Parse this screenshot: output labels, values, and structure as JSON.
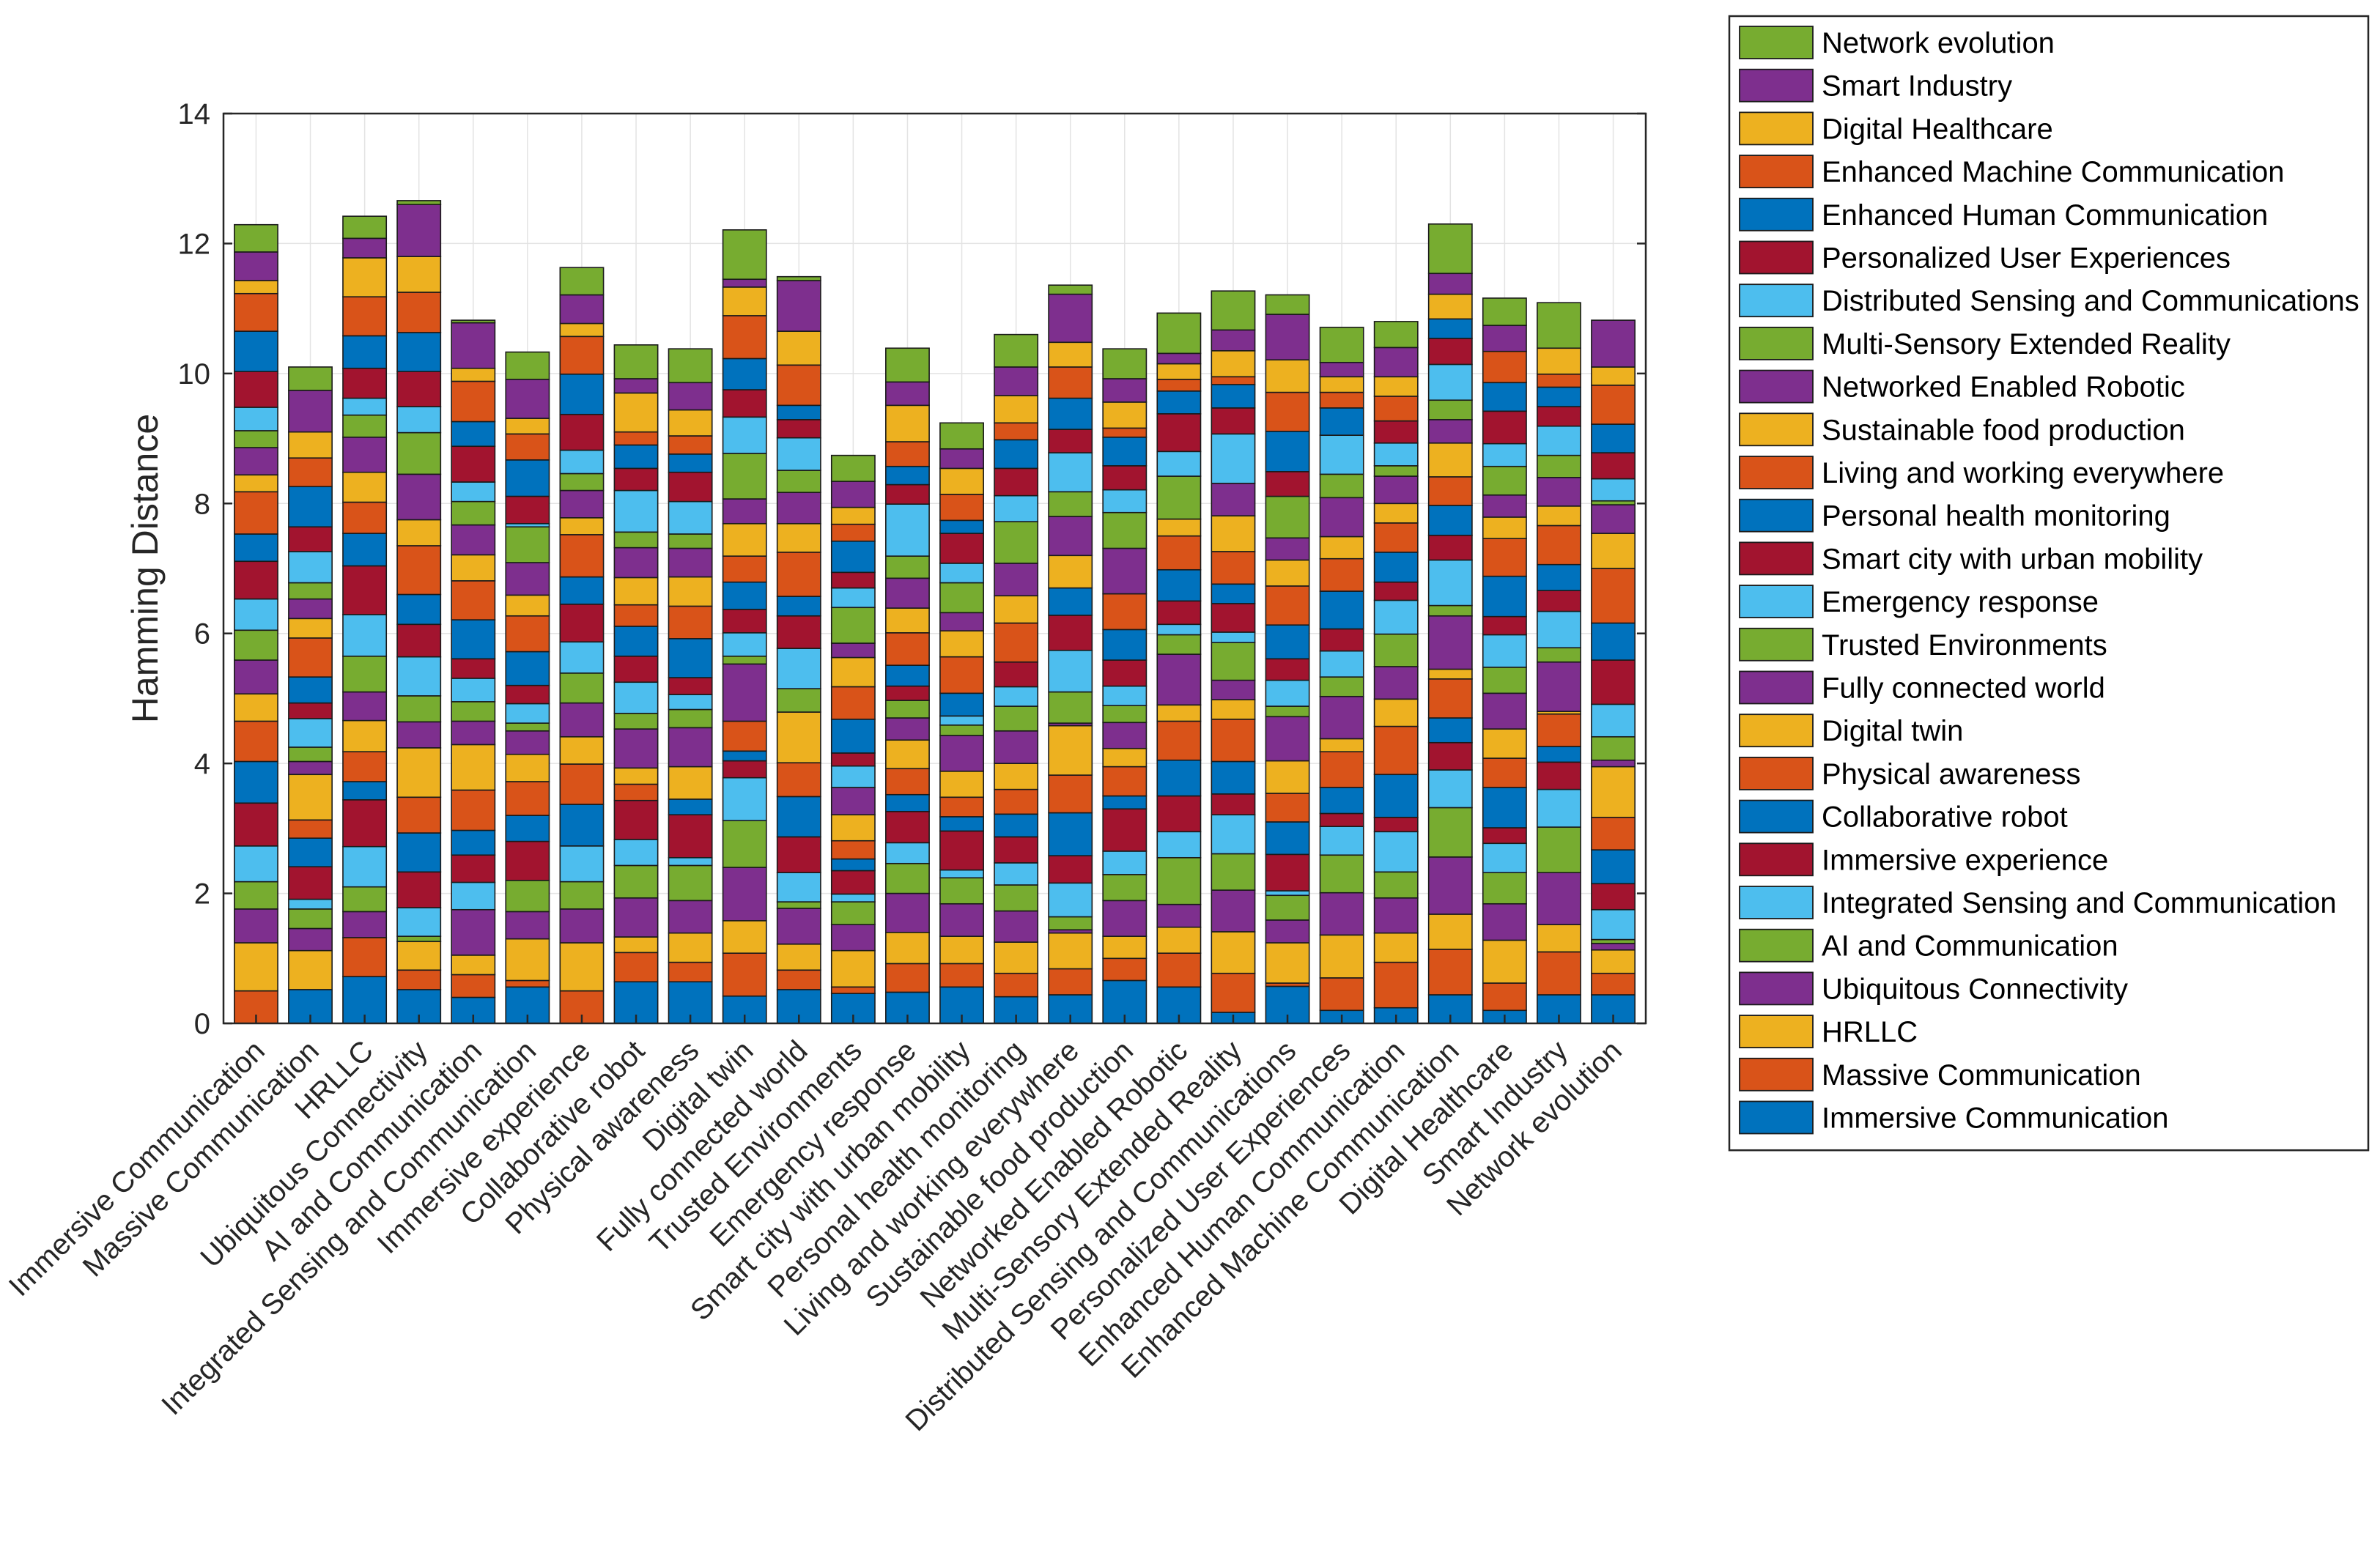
{
  "chart_data": {
    "type": "bar",
    "stacked": true,
    "title": "",
    "xlabel": "",
    "ylabel": "Hamming Distance",
    "ylim": [
      0,
      14
    ],
    "yticks": [
      "0",
      "2",
      "4",
      "6",
      "8",
      "10",
      "12",
      "14"
    ],
    "grid": true,
    "legend_position": "outside-right",
    "categories": [
      "Immersive Communication",
      "Massive Communication",
      "HRLLC",
      "Ubiquitous Connectivity",
      "AI and Communication",
      "Integrated Sensing and Communication",
      "Immersive experience",
      "Collaborative robot",
      "Physical awareness",
      "Digital twin",
      "Fully connected world",
      "Trusted Environments",
      "Emergency response",
      "Smart city with urban mobility",
      "Personal health monitoring",
      "Living and working everywhere",
      "Sustainable food production",
      "Networked Enabled Robotic",
      "Multi-Sensory Extended Reality",
      "Distributed Sensing and Communications",
      "Personalized User Experiences",
      "Enhanced Human Communication",
      "Enhanced Machine Communication",
      "Digital Healthcare",
      "Smart Industry",
      "Network evolution"
    ],
    "series_colors": [
      "#0072BD",
      "#D95319",
      "#EDB120",
      "#7E2F8E",
      "#77AC30",
      "#4DBEEE",
      "#A2142F"
    ],
    "series": [
      {
        "name": "Immersive Communication",
        "values": [
          0,
          0.52,
          0.72,
          0.52,
          0.4,
          0.56,
          0,
          0.64,
          0.64,
          0.42,
          0.52,
          0.46,
          0.48,
          0.56,
          0.41,
          0.44,
          0.66,
          0.56,
          0.17,
          0.57,
          0.2,
          0.24,
          0.44,
          0.2,
          0.44,
          0.44
        ]
      },
      {
        "name": "Massive Communication",
        "values": [
          0.5,
          0,
          0.6,
          0.3,
          0.35,
          0.1,
          0.5,
          0.45,
          0.3,
          0.66,
          0.3,
          0.1,
          0.44,
          0.36,
          0.36,
          0.4,
          0.34,
          0.52,
          0.6,
          0.05,
          0.5,
          0.7,
          0.7,
          0.42,
          0.66,
          0.33
        ]
      },
      {
        "name": "HRLLC",
        "values": [
          0.74,
          0.6,
          0,
          0.44,
          0.3,
          0.64,
          0.74,
          0.24,
          0.45,
          0.5,
          0.4,
          0.56,
          0.48,
          0.42,
          0.48,
          0.55,
          0.34,
          0.4,
          0.64,
          0.62,
          0.66,
          0.45,
          0.54,
          0.66,
          0.42,
          0.36
        ]
      },
      {
        "name": "Ubiquitous Connectivity",
        "values": [
          0.52,
          0.34,
          0.4,
          0,
          0.7,
          0.42,
          0.52,
          0.6,
          0.5,
          0.82,
          0.55,
          0.4,
          0.6,
          0.5,
          0.48,
          0.05,
          0.55,
          0.35,
          0.64,
          0.35,
          0.65,
          0.54,
          0.88,
          0.56,
          0.8,
          0.1
        ]
      },
      {
        "name": "AI and Communication",
        "values": [
          0.42,
          0.3,
          0.38,
          0.08,
          0,
          0.48,
          0.42,
          0.5,
          0.54,
          0.72,
          0.1,
          0.35,
          0.46,
          0.4,
          0.4,
          0.2,
          0.4,
          0.72,
          0.56,
          0.38,
          0.58,
          0.4,
          0.76,
          0.48,
          0.7,
          0.06
        ]
      },
      {
        "name": "Integrated Sensing and Communication",
        "values": [
          0.55,
          0.15,
          0.62,
          0.44,
          0.42,
          0,
          0.55,
          0.4,
          0.12,
          0.66,
          0.45,
          0.12,
          0.32,
          0.12,
          0.34,
          0.52,
          0.36,
          0.4,
          0.6,
          0.07,
          0.44,
          0.62,
          0.58,
          0.45,
          0.58,
          0.46
        ]
      },
      {
        "name": "Immersive experience",
        "values": [
          0.66,
          0.5,
          0.72,
          0.55,
          0.42,
          0.6,
          0,
          0.6,
          0.66,
          0.26,
          0.55,
          0.36,
          0.48,
          0.6,
          0.4,
          0.42,
          0.65,
          0.55,
          0.32,
          0.56,
          0.2,
          0.22,
          0.42,
          0.24,
          0.42,
          0.4
        ]
      },
      {
        "name": "Collaborative robot",
        "values": [
          0.64,
          0.44,
          0.28,
          0.6,
          0.38,
          0.4,
          0.64,
          0,
          0.24,
          0.15,
          0.62,
          0.18,
          0.26,
          0.22,
          0.35,
          0.66,
          0.2,
          0.55,
          0.5,
          0.5,
          0.4,
          0.66,
          0.38,
          0.62,
          0.24,
          0.52
        ]
      },
      {
        "name": "Physical awareness",
        "values": [
          0.62,
          0.28,
          0.46,
          0.55,
          0.62,
          0.52,
          0.62,
          0.25,
          0,
          0.46,
          0.52,
          0.28,
          0.4,
          0.3,
          0.38,
          0.58,
          0.45,
          0.6,
          0.65,
          0.44,
          0.55,
          0.74,
          0.6,
          0.45,
          0.5,
          0.5
        ]
      },
      {
        "name": "Digital twin",
        "values": [
          0.42,
          0.7,
          0.48,
          0.76,
          0.7,
          0.42,
          0.42,
          0.25,
          0.5,
          0,
          0.78,
          0.4,
          0.44,
          0.4,
          0.4,
          0.76,
          0.28,
          0.25,
          0.3,
          0.5,
          0.2,
          0.42,
          0.15,
          0.45,
          0.04,
          0.78
        ]
      },
      {
        "name": "Fully connected world",
        "values": [
          0.52,
          0.2,
          0.44,
          0.4,
          0.36,
          0.36,
          0.52,
          0.6,
          0.6,
          0.88,
          0,
          0.42,
          0.34,
          0.55,
          0.5,
          0.04,
          0.4,
          0.78,
          0.3,
          0.68,
          0.65,
          0.5,
          0.82,
          0.55,
          0.76,
          0.1
        ]
      },
      {
        "name": "Trusted Environments",
        "values": [
          0.46,
          0.22,
          0.55,
          0.4,
          0.3,
          0.12,
          0.46,
          0.24,
          0.28,
          0.12,
          0.36,
          0,
          0.27,
          0.16,
          0.38,
          0.48,
          0.26,
          0.3,
          0.58,
          0.16,
          0.3,
          0.5,
          0.16,
          0.4,
          0.22,
          0.36
        ]
      },
      {
        "name": "Emergency response",
        "values": [
          0.48,
          0.44,
          0.64,
          0.6,
          0.36,
          0.3,
          0.48,
          0.48,
          0.23,
          0.36,
          0.62,
          0.33,
          0,
          0.14,
          0.3,
          0.64,
          0.3,
          0.16,
          0.16,
          0.4,
          0.4,
          0.52,
          0.7,
          0.5,
          0.56,
          0.5
        ]
      },
      {
        "name": "Smart city with urban mobility",
        "values": [
          0.58,
          0.24,
          0.75,
          0.5,
          0.3,
          0.28,
          0.58,
          0.4,
          0.26,
          0.36,
          0.5,
          0.2,
          0.22,
          0,
          0.38,
          0.54,
          0.4,
          0.36,
          0.44,
          0.33,
          0.34,
          0.28,
          0.38,
          0.28,
          0.32,
          0.68
        ]
      },
      {
        "name": "Personal health monitoring",
        "values": [
          0.42,
          0.4,
          0.5,
          0.46,
          0.6,
          0.52,
          0.42,
          0.46,
          0.6,
          0.42,
          0.3,
          0.52,
          0.32,
          0.35,
          0,
          0.42,
          0.47,
          0.48,
          0.3,
          0.52,
          0.58,
          0.46,
          0.46,
          0.62,
          0.4,
          0.57
        ]
      },
      {
        "name": "Living and working everywhere",
        "values": [
          0.65,
          0.6,
          0.48,
          0.75,
          0.6,
          0.55,
          0.65,
          0.33,
          0.5,
          0.4,
          0.68,
          0.5,
          0.5,
          0.56,
          0.6,
          0,
          0.55,
          0.52,
          0.5,
          0.6,
          0.5,
          0.45,
          0.44,
          0.58,
          0.6,
          0.84
        ]
      },
      {
        "name": "Sustainable food production",
        "values": [
          0.26,
          0.3,
          0.46,
          0.4,
          0.4,
          0.32,
          0.26,
          0.42,
          0.45,
          0.5,
          0.44,
          0.45,
          0.38,
          0.4,
          0.42,
          0.5,
          0,
          0.26,
          0.55,
          0.4,
          0.34,
          0.3,
          0.52,
          0.33,
          0.3,
          0.54
        ]
      },
      {
        "name": "Networked Enabled Robotic",
        "values": [
          0.42,
          0.3,
          0.54,
          0.7,
          0.46,
          0.5,
          0.42,
          0.46,
          0.44,
          0.38,
          0.48,
          0.22,
          0.46,
          0.28,
          0.5,
          0.6,
          0.7,
          0,
          0.5,
          0.34,
          0.6,
          0.42,
          0.36,
          0.34,
          0.44,
          0.44
        ]
      },
      {
        "name": "Multi-Sensory Extended Reality",
        "values": [
          0.26,
          0.25,
          0.34,
          0.64,
          0.36,
          0.55,
          0.26,
          0.24,
          0.22,
          0.7,
          0.34,
          0.55,
          0.34,
          0.46,
          0.64,
          0.38,
          0.55,
          0.66,
          0,
          0.64,
          0.36,
          0.16,
          0.3,
          0.44,
          0.34,
          0.06
        ]
      },
      {
        "name": "Distributed Sensing and Communications",
        "values": [
          0.36,
          0.48,
          0.26,
          0.4,
          0.3,
          0.05,
          0.36,
          0.64,
          0.5,
          0.56,
          0.5,
          0.3,
          0.8,
          0.3,
          0.4,
          0.6,
          0.35,
          0.38,
          0.76,
          0,
          0.6,
          0.35,
          0.55,
          0.35,
          0.45,
          0.34
        ]
      },
      {
        "name": "Personalized User Experiences",
        "values": [
          0.55,
          0.38,
          0.46,
          0.54,
          0.55,
          0.42,
          0.55,
          0.34,
          0.45,
          0.42,
          0.28,
          0.24,
          0.3,
          0.46,
          0.42,
          0.36,
          0.37,
          0.58,
          0.4,
          0.38,
          0,
          0.34,
          0.4,
          0.5,
          0.3,
          0.4
        ]
      },
      {
        "name": "Enhanced Human Communication",
        "values": [
          0.62,
          0.62,
          0.5,
          0.6,
          0.38,
          0.56,
          0.62,
          0.36,
          0.28,
          0.48,
          0.22,
          0.48,
          0.28,
          0.2,
          0.44,
          0.48,
          0.44,
          0.35,
          0.36,
          0.62,
          0.42,
          0,
          0.3,
          0.44,
          0.3,
          0.44
        ]
      },
      {
        "name": "Enhanced Machine Communication",
        "values": [
          0.58,
          0.44,
          0.6,
          0.62,
          0.62,
          0.4,
          0.58,
          0.2,
          0.28,
          0.66,
          0.62,
          0.26,
          0.38,
          0.4,
          0.26,
          0.48,
          0.14,
          0.18,
          0.12,
          0.6,
          0.24,
          0.38,
          0,
          0.48,
          0.2,
          0.6
        ]
      },
      {
        "name": "Digital Healthcare",
        "values": [
          0.2,
          0.4,
          0.6,
          0.55,
          0.2,
          0.24,
          0.2,
          0.6,
          0.4,
          0.44,
          0.52,
          0.26,
          0.56,
          0.4,
          0.42,
          0.38,
          0.4,
          0.24,
          0.4,
          0.5,
          0.24,
          0.3,
          0.38,
          0,
          0.4,
          0.28
        ]
      },
      {
        "name": "Smart Industry",
        "values": [
          0.44,
          0.64,
          0.3,
          0.8,
          0.7,
          0.6,
          0.44,
          0.22,
          0.42,
          0.12,
          0.78,
          0.4,
          0.36,
          0.3,
          0.44,
          0.74,
          0.36,
          0.16,
          0.32,
          0.7,
          0.22,
          0.45,
          0.32,
          0.4,
          0,
          0.72
        ]
      },
      {
        "name": "Network evolution",
        "values": [
          0.42,
          0.36,
          0.34,
          0.06,
          0.04,
          0.42,
          0.42,
          0.52,
          0.52,
          0.76,
          0.06,
          0.4,
          0.52,
          0.4,
          0.5,
          0.14,
          0.46,
          0.62,
          0.6,
          0.3,
          0.54,
          0.4,
          0.76,
          0.42,
          0.7,
          0
        ]
      }
    ]
  }
}
